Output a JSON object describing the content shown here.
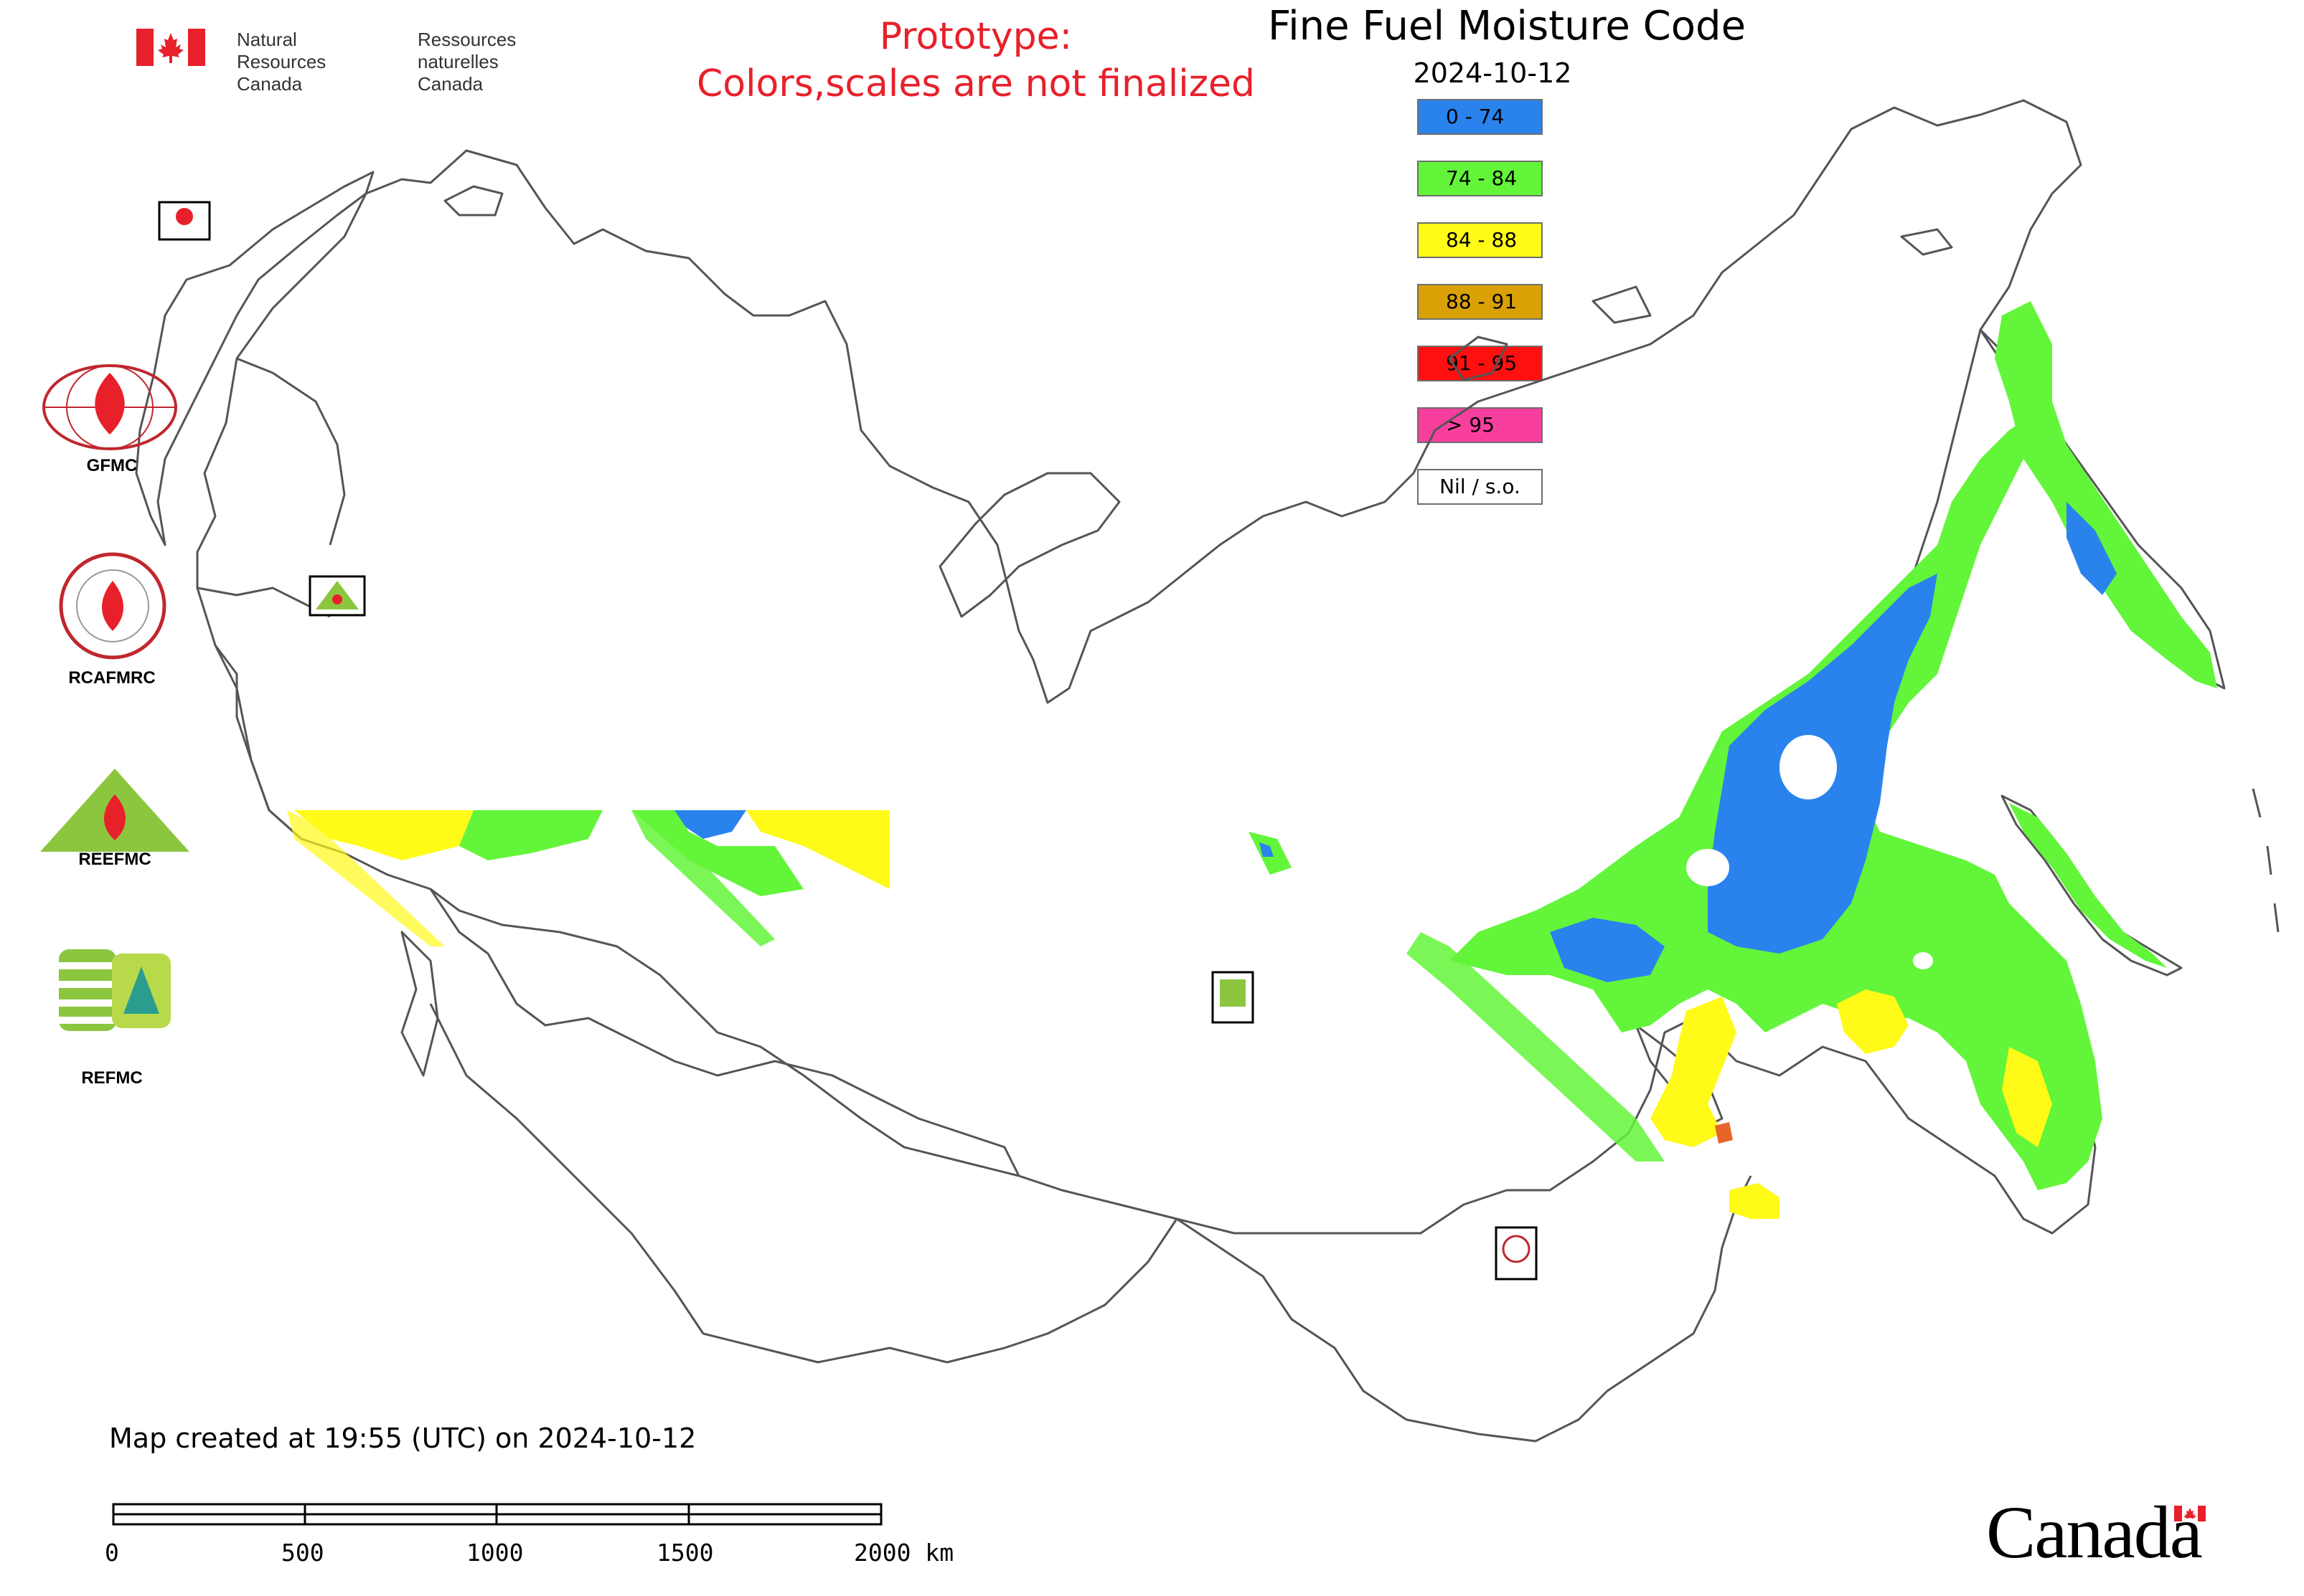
{
  "header": {
    "agency_en": "Natural Resources\nCanada",
    "agency_fr": "Ressources naturelles\nCanada",
    "prototype_line1": "Prototype:",
    "prototype_line2": "Colors,scales are not finalized",
    "title": "Fine Fuel Moisture Code",
    "date": "2024-10-12"
  },
  "legend": [
    {
      "label": "0 - 74",
      "color": "#2a83ed"
    },
    {
      "label": "74 - 84",
      "color": "#63f53a"
    },
    {
      "label": "84 - 88",
      "color": "#fffa17"
    },
    {
      "label": "88 - 91",
      "color": "#daa107"
    },
    {
      "label": "91 - 95",
      "color": "#ff0f0f"
    },
    {
      "label": "> 95",
      "color": "#f83f9e"
    },
    {
      "label": "Nil / s.o.",
      "color": "#ffffff"
    }
  ],
  "side_logos": [
    {
      "label": "GFMC",
      "icon": "gfmc-logo"
    },
    {
      "label": "RCAFMRC",
      "icon": "rcafmrc-logo"
    },
    {
      "label": "",
      "icon": "reefmc-logo"
    },
    {
      "label": "REFMC",
      "icon": "refmc-logo"
    }
  ],
  "footer": {
    "created": "Map created at 19:55 (UTC) on 2024-10-12",
    "scale_labels": [
      "0",
      "500",
      "1000",
      "1500",
      "2000 km"
    ],
    "wordmark": "Canada"
  },
  "colors": {
    "prototype_text": "#e8202a",
    "border_lines": "#555555"
  }
}
